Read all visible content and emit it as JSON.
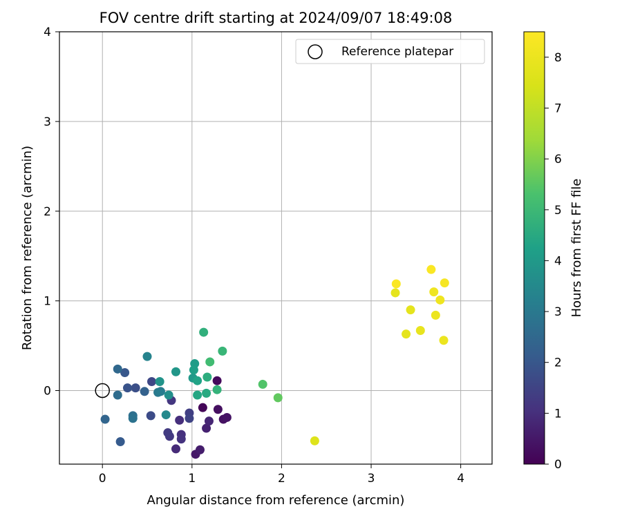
{
  "chart_data": {
    "type": "scatter",
    "title": "FOV centre drift starting at 2024/09/07 18:49:08",
    "xlabel": "Angular distance from reference (arcmin)",
    "ylabel": "Rotation from reference (arcmin)",
    "xlim": [
      -0.48,
      4.35
    ],
    "ylim": [
      -0.82,
      4.0
    ],
    "xticks": [
      0,
      1,
      2,
      3,
      4
    ],
    "yticks": [
      0,
      1,
      2,
      3,
      4
    ],
    "grid": true,
    "legend": {
      "position": "top-right",
      "entries": [
        "Reference platepar"
      ]
    },
    "reference_point": {
      "x": 0,
      "y": 0
    },
    "colorbar": {
      "label": "Hours from first FF file",
      "range": [
        0,
        8.5
      ],
      "ticks": [
        0,
        1,
        2,
        3,
        4,
        5,
        6,
        7,
        8
      ],
      "colormap": "viridis"
    },
    "points": [
      {
        "x": 1.12,
        "y": -0.19,
        "c": 0.1
      },
      {
        "x": 1.28,
        "y": 0.11,
        "c": 0.2
      },
      {
        "x": 1.29,
        "y": -0.21,
        "c": 0.3
      },
      {
        "x": 1.35,
        "y": -0.32,
        "c": 0.35
      },
      {
        "x": 1.39,
        "y": -0.3,
        "c": 0.4
      },
      {
        "x": 1.04,
        "y": -0.71,
        "c": 0.5
      },
      {
        "x": 1.09,
        "y": -0.66,
        "c": 0.6
      },
      {
        "x": 1.16,
        "y": -0.42,
        "c": 0.7
      },
      {
        "x": 1.19,
        "y": -0.34,
        "c": 0.8
      },
      {
        "x": 0.82,
        "y": -0.65,
        "c": 0.9
      },
      {
        "x": 0.86,
        "y": -0.33,
        "c": 1.0
      },
      {
        "x": 0.88,
        "y": -0.49,
        "c": 1.05
      },
      {
        "x": 0.88,
        "y": -0.54,
        "c": 1.1
      },
      {
        "x": 0.77,
        "y": -0.11,
        "c": 1.2
      },
      {
        "x": 0.75,
        "y": -0.51,
        "c": 1.25
      },
      {
        "x": 0.73,
        "y": -0.47,
        "c": 1.3
      },
      {
        "x": 0.97,
        "y": -0.25,
        "c": 1.4
      },
      {
        "x": 0.97,
        "y": -0.31,
        "c": 1.5
      },
      {
        "x": 0.55,
        "y": 0.1,
        "c": 1.6
      },
      {
        "x": 0.54,
        "y": -0.28,
        "c": 1.7
      },
      {
        "x": 0.37,
        "y": 0.03,
        "c": 1.8
      },
      {
        "x": 0.28,
        "y": 0.03,
        "c": 1.9
      },
      {
        "x": 0.25,
        "y": 0.2,
        "c": 2.0
      },
      {
        "x": 0.2,
        "y": -0.57,
        "c": 2.1
      },
      {
        "x": 0.47,
        "y": -0.01,
        "c": 2.3
      },
      {
        "x": 0.03,
        "y": -0.32,
        "c": 2.4
      },
      {
        "x": 0.17,
        "y": 0.24,
        "c": 2.5
      },
      {
        "x": 0.17,
        "y": -0.05,
        "c": 2.6
      },
      {
        "x": 0.34,
        "y": -0.28,
        "c": 2.7
      },
      {
        "x": 0.34,
        "y": -0.31,
        "c": 2.8
      },
      {
        "x": 0.62,
        "y": -0.02,
        "c": 3.0
      },
      {
        "x": 0.65,
        "y": -0.01,
        "c": 3.1
      },
      {
        "x": 0.5,
        "y": 0.38,
        "c": 3.3
      },
      {
        "x": 0.71,
        "y": -0.27,
        "c": 3.5
      },
      {
        "x": 0.74,
        "y": -0.05,
        "c": 3.7
      },
      {
        "x": 0.64,
        "y": 0.1,
        "c": 3.8
      },
      {
        "x": 0.82,
        "y": 0.21,
        "c": 3.9
      },
      {
        "x": 1.01,
        "y": 0.14,
        "c": 4.0
      },
      {
        "x": 1.03,
        "y": 0.3,
        "c": 4.1
      },
      {
        "x": 1.02,
        "y": 0.23,
        "c": 4.2
      },
      {
        "x": 1.06,
        "y": 0.11,
        "c": 4.3
      },
      {
        "x": 1.06,
        "y": -0.05,
        "c": 4.4
      },
      {
        "x": 1.16,
        "y": -0.03,
        "c": 4.5
      },
      {
        "x": 1.17,
        "y": 0.15,
        "c": 4.6
      },
      {
        "x": 1.13,
        "y": 0.65,
        "c": 4.7
      },
      {
        "x": 1.28,
        "y": 0.01,
        "c": 4.8
      },
      {
        "x": 1.34,
        "y": 0.44,
        "c": 4.9
      },
      {
        "x": 1.2,
        "y": 0.32,
        "c": 5.1
      },
      {
        "x": 1.79,
        "y": 0.07,
        "c": 5.4
      },
      {
        "x": 1.96,
        "y": -0.08,
        "c": 5.6
      },
      {
        "x": 2.37,
        "y": -0.56,
        "c": 7.6
      },
      {
        "x": 3.27,
        "y": 1.09,
        "c": 7.8
      },
      {
        "x": 3.44,
        "y": 0.9,
        "c": 7.8
      },
      {
        "x": 3.39,
        "y": 0.63,
        "c": 7.8
      },
      {
        "x": 3.55,
        "y": 0.67,
        "c": 7.9
      },
      {
        "x": 3.72,
        "y": 0.84,
        "c": 8.0
      },
      {
        "x": 3.81,
        "y": 0.56,
        "c": 8.0
      },
      {
        "x": 3.7,
        "y": 1.1,
        "c": 8.1
      },
      {
        "x": 3.77,
        "y": 1.01,
        "c": 8.1
      },
      {
        "x": 3.82,
        "y": 1.2,
        "c": 8.3
      },
      {
        "x": 3.67,
        "y": 1.35,
        "c": 8.4
      },
      {
        "x": 3.28,
        "y": 1.19,
        "c": 8.4
      }
    ]
  }
}
